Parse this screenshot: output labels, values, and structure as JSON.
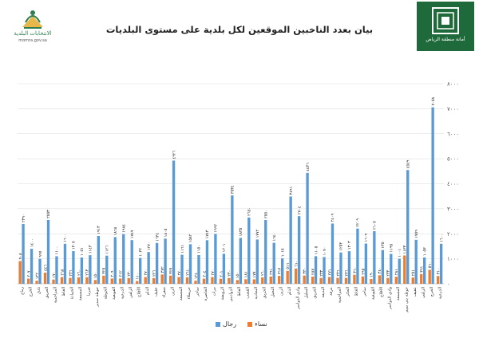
{
  "header": {
    "title": "بيان بعدد الناخبين الموقعين لكل بلدية على مستوى البلديات",
    "logo_left": {
      "caption": "الانتخابات البلدية",
      "subcaption": "momra.gov.sa"
    },
    "logo_right": {
      "caption": "أمانة منطقة الرياض"
    }
  },
  "chart_data": {
    "type": "bar",
    "title": "بيان بعدد الناخبين الموقعين لكل بلدية على مستوى البلديات",
    "ylim": [
      0,
      8000
    ],
    "yticks": [
      "٠",
      "١٠٠٠",
      "٢٠٠٠",
      "٣٠٠٠",
      "٤٠٠٠",
      "٥٠٠٠",
      "٦٠٠٠",
      "٧٠٠٠",
      "٨٠٠٠"
    ],
    "grid": true,
    "legend_position": "bottom",
    "categories": [
      "رماح",
      "الخرج",
      "ثادق",
      "الحريق",
      "المزاحمية",
      "الغاط",
      "الحمادة",
      "المجمعة",
      "ضرما",
      "حوطة سدير",
      "الحوطة",
      "القويعية",
      "الدرعية",
      "الزلفي",
      "الأفلاج",
      "الدلم",
      "عفيف",
      "شقراء",
      "الرين",
      "المجمعة",
      "حريملاء",
      "ساجر",
      "الخاصرة",
      "مرات",
      "الرويضة",
      "الدوادمي",
      "الغاط",
      "القصب",
      "البجادية",
      "الحريق",
      "النخيل",
      "الرين",
      "الدلم",
      "وادي الدواسر",
      "السليل",
      "الحريق",
      "البديعة",
      "عرقة",
      "المزاحمية",
      "الحائر",
      "الغاط",
      "ساجر",
      "القويعية",
      "الأفلاج",
      "وادي الدواسر",
      "المجمعة",
      "حوطة بني تميم",
      "عفيف",
      "الزلفي",
      "الخرج",
      "الدرعية"
    ],
    "series": [
      {
        "name": "رجال",
        "color": "#5b9bd5",
        "values": [
          2390,
          1400,
          997,
          2553,
          1100,
          1600,
          1305,
          1051,
          1143,
          1913,
          1126,
          1868,
          1984,
          1747,
          1032,
          1270,
          1634,
          1805,
          4926,
          1161,
          1582,
          1150,
          1743,
          1992,
          1201,
          3534,
          1835,
          2650,
          1772,
          2550,
          1640,
          1015,
          3491,
          2704,
          4436,
          1105,
          1070,
          2409,
          1253,
          1303,
          2209,
          1609,
          2105,
          1350,
          1195,
          1001,
          4549,
          1759,
          1053,
          7058,
          1600
        ]
      },
      {
        "name": "نساء",
        "color": "#ed7d31",
        "values": [
          908,
          207,
          122,
          446,
          170,
          268,
          236,
          260,
          263,
          150,
          325,
          209,
          212,
          230,
          110,
          270,
          226,
          372,
          327,
          270,
          261,
          124,
          204,
          270,
          201,
          230,
          150,
          181,
          177,
          260,
          291,
          317,
          516,
          610,
          330,
          287,
          233,
          271,
          236,
          236,
          360,
          295,
          190,
          340,
          233,
          281,
          1133,
          251,
          391,
          560,
          310
        ]
      }
    ]
  },
  "legend": [
    {
      "label": "نساء",
      "color": "#ed7d31"
    },
    {
      "label": "رجال",
      "color": "#5b9bd5"
    }
  ]
}
